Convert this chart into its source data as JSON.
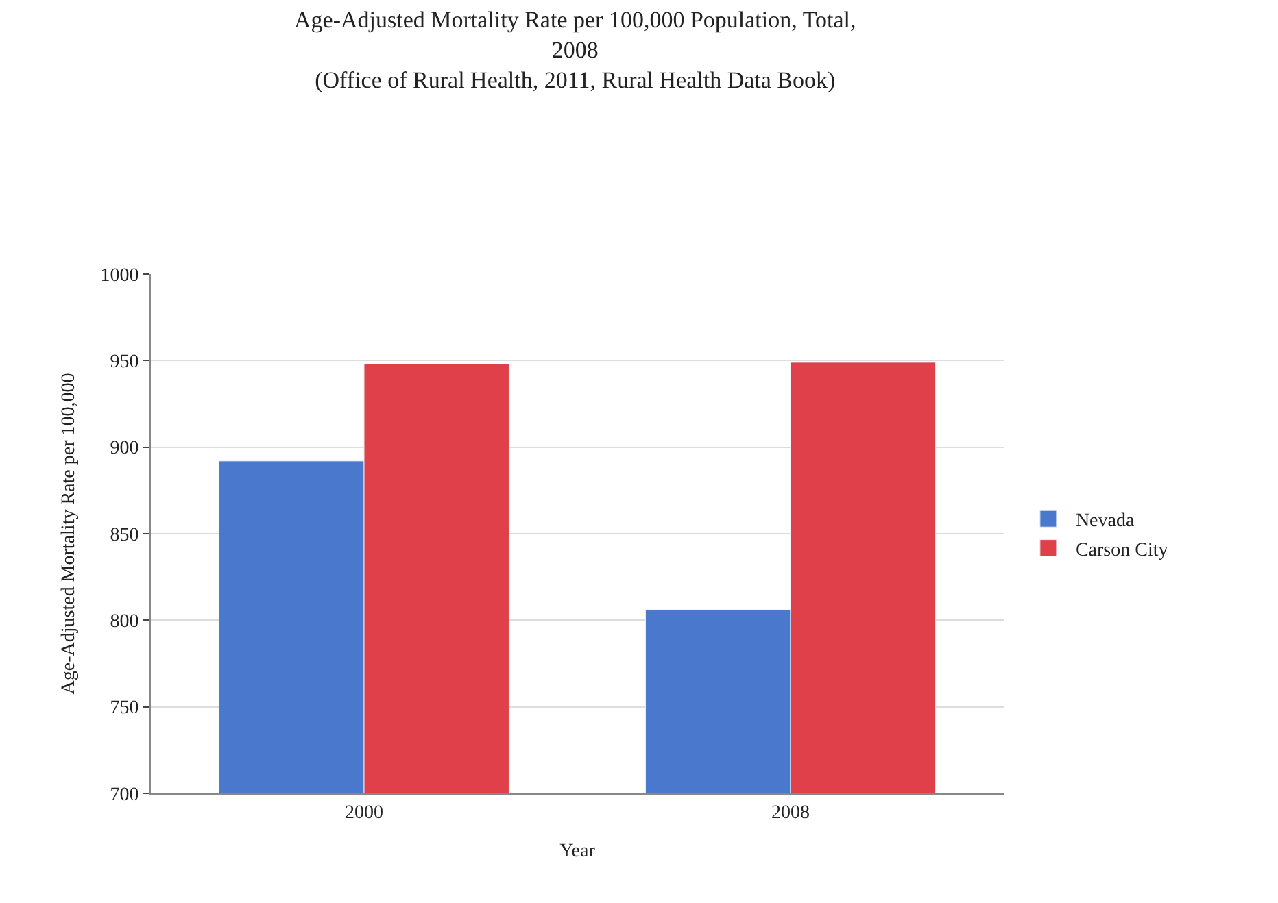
{
  "chart_data": {
    "type": "bar",
    "title": "Age-Adjusted Mortality Rate per 100,000 Population, Total,\n2008\n(Office of Rural Health, 2011, Rural Health Data Book)",
    "xlabel": "Year",
    "ylabel": "Age-Adjusted Mortality Rate per 100,000",
    "categories": [
      "2000",
      "2008"
    ],
    "series": [
      {
        "name": "Nevada",
        "color": "#4a78cc",
        "values": [
          892,
          806
        ]
      },
      {
        "name": "Carson City",
        "color": "#e0404a",
        "values": [
          948,
          949
        ]
      }
    ],
    "ylim": [
      700,
      1000
    ],
    "yticks": [
      700,
      750,
      800,
      850,
      900,
      950,
      1000
    ],
    "grid": "y",
    "legend": "right"
  }
}
